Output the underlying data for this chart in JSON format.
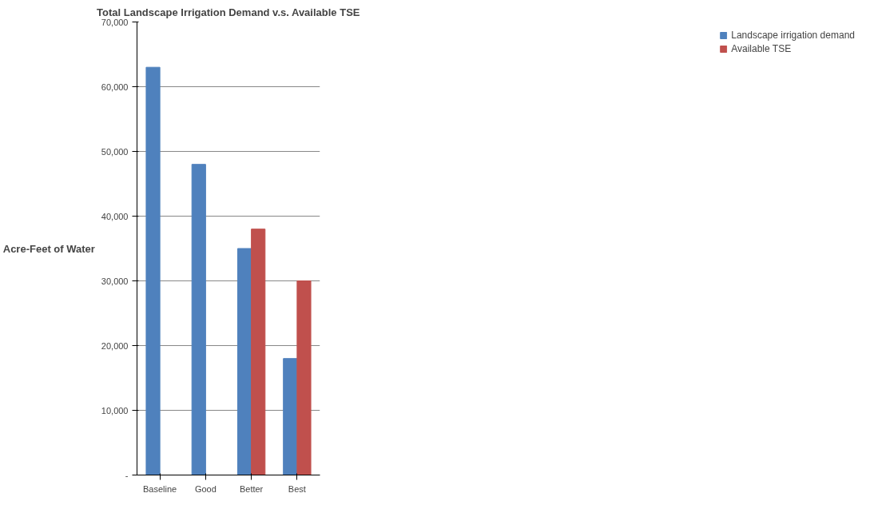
{
  "chart_data": {
    "type": "bar",
    "title": "Total Landscape Irrigation Demand v.s. Available TSE",
    "ylabel": "Acre-Feet of Water",
    "categories": [
      "Baseline",
      "Good",
      "Better",
      "Best"
    ],
    "series": [
      {
        "name": "Landscape irrigation demand",
        "color": "#4f81bd",
        "values": [
          63000,
          48000,
          35000,
          18000
        ]
      },
      {
        "name": "Available TSE",
        "color": "#c0504d",
        "values": [
          0,
          0,
          38000,
          30000
        ]
      }
    ],
    "ylim": [
      0,
      70000
    ],
    "yticks": [
      {
        "value": 0,
        "label": "-"
      },
      {
        "value": 10000,
        "label": "10,000"
      },
      {
        "value": 20000,
        "label": "20,000"
      },
      {
        "value": 30000,
        "label": "30,000"
      },
      {
        "value": 40000,
        "label": "40,000"
      },
      {
        "value": 50000,
        "label": "50,000"
      },
      {
        "value": 60000,
        "label": "60,000"
      },
      {
        "value": 70000,
        "label": "70,000"
      }
    ],
    "grid": "y",
    "legend": "right"
  }
}
